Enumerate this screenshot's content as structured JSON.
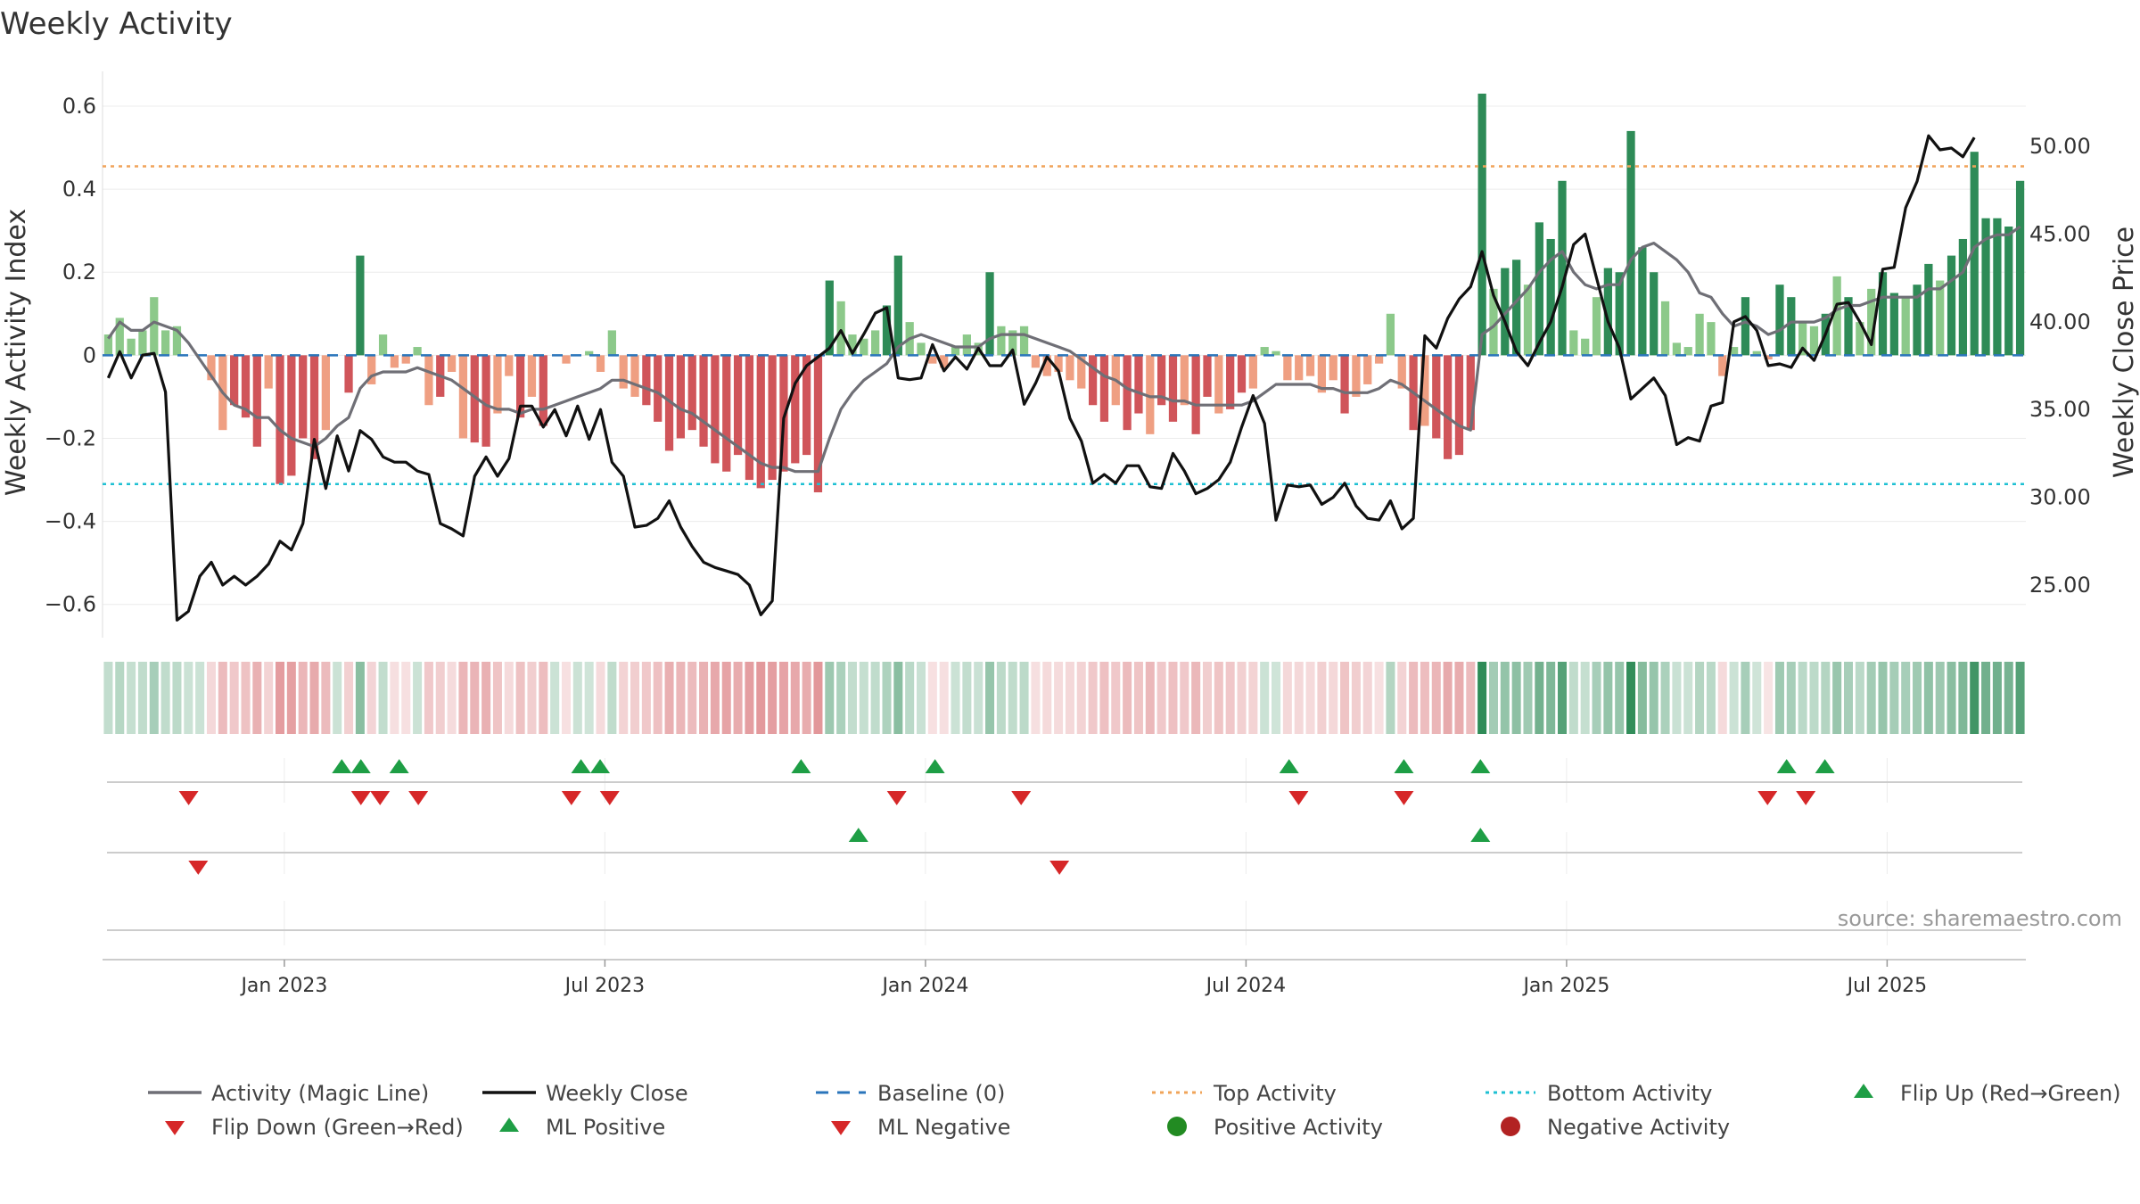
{
  "chart_data": {
    "type": "bar",
    "title": "Weekly Activity",
    "ylabel": "Weekly Activity Index",
    "y2label": "Weekly Close Price",
    "ylim": [
      -0.68,
      0.63
    ],
    "y2lim": [
      22.0,
      53.0
    ],
    "yticks": [
      0.6,
      0.4,
      0.2,
      0,
      -0.2,
      -0.4,
      -0.6
    ],
    "ytick_labels": [
      "0.6",
      "0.4",
      "0.2",
      "0",
      "−0.2",
      "−0.4",
      "−0.6"
    ],
    "y2ticks": [
      50,
      45,
      40,
      35,
      30,
      25
    ],
    "y2tick_labels": [
      "50.00",
      "45.00",
      "40.00",
      "35.00",
      "30.00",
      "25.00"
    ],
    "week_range": [
      0,
      201
    ],
    "xtick_weeks": [
      19,
      52.5,
      86,
      119.5,
      153,
      186.5
    ],
    "xtick_labels": [
      "Jan 2023",
      "Jul 2023",
      "Jan 2024",
      "Jul 2024",
      "Jan 2025",
      "Jul 2025"
    ],
    "top_activity": 0.455,
    "bottom_activity": -0.31,
    "activity_bars": [
      0.05,
      0.09,
      0.04,
      0.06,
      0.14,
      0.06,
      0.07,
      0,
      0,
      -0.06,
      -0.18,
      -0.12,
      -0.15,
      -0.22,
      -0.08,
      -0.31,
      -0.29,
      -0.2,
      -0.25,
      -0.18,
      0,
      -0.09,
      0.24,
      -0.07,
      0.05,
      -0.03,
      -0.02,
      0.02,
      -0.12,
      -0.1,
      -0.04,
      -0.2,
      -0.21,
      -0.22,
      -0.14,
      -0.05,
      -0.15,
      -0.1,
      -0.17,
      0,
      -0.02,
      0,
      0.01,
      -0.04,
      0.06,
      -0.08,
      -0.1,
      -0.12,
      -0.16,
      -0.23,
      -0.2,
      -0.18,
      -0.22,
      -0.26,
      -0.28,
      -0.24,
      -0.3,
      -0.32,
      -0.3,
      -0.28,
      -0.26,
      -0.24,
      -0.33,
      0.18,
      0.13,
      0.05,
      0.04,
      0.06,
      0.12,
      0.24,
      0.08,
      0.03,
      -0.02,
      -0.03,
      0.02,
      0.05,
      0.03,
      0.2,
      0.07,
      0.06,
      0.07,
      -0.03,
      -0.05,
      -0.04,
      -0.06,
      -0.08,
      -0.12,
      -0.16,
      -0.12,
      -0.18,
      -0.14,
      -0.19,
      -0.12,
      -0.16,
      -0.12,
      -0.19,
      -0.1,
      -0.14,
      -0.13,
      -0.09,
      -0.08,
      0.02,
      0.01,
      -0.06,
      -0.06,
      -0.05,
      -0.09,
      -0.06,
      -0.14,
      -0.1,
      -0.07,
      -0.02,
      0.1,
      -0.08,
      -0.18,
      -0.17,
      -0.2,
      -0.25,
      -0.24,
      -0.18,
      0.63,
      0.16,
      0.21,
      0.23,
      0.17,
      0.32,
      0.28,
      0.42,
      0.06,
      0.04,
      0.14,
      0.21,
      0.2,
      0.54,
      0.26,
      0.2,
      0.13,
      0.03,
      0.02,
      0.1,
      0.08,
      -0.05,
      0.02,
      0.14,
      0.01,
      -0.01,
      0.17,
      0.14,
      0.08,
      0.07,
      0.1,
      0.19,
      0.14,
      0.08,
      0.16,
      0.2,
      0.15,
      0.14,
      0.17,
      0.22,
      0.18,
      0.24,
      0.28,
      0.49,
      0.33,
      0.33,
      0.31,
      0.42
    ],
    "magic_line": [
      0.04,
      0.08,
      0.06,
      0.06,
      0.08,
      0.07,
      0.06,
      0.03,
      -0.01,
      -0.05,
      -0.09,
      -0.12,
      -0.13,
      -0.15,
      -0.15,
      -0.18,
      -0.2,
      -0.21,
      -0.22,
      -0.2,
      -0.17,
      -0.15,
      -0.08,
      -0.05,
      -0.04,
      -0.04,
      -0.04,
      -0.03,
      -0.04,
      -0.05,
      -0.06,
      -0.08,
      -0.1,
      -0.12,
      -0.13,
      -0.13,
      -0.14,
      -0.13,
      -0.13,
      -0.12,
      -0.11,
      -0.1,
      -0.09,
      -0.08,
      -0.06,
      -0.06,
      -0.07,
      -0.08,
      -0.09,
      -0.11,
      -0.13,
      -0.14,
      -0.16,
      -0.18,
      -0.2,
      -0.22,
      -0.24,
      -0.26,
      -0.27,
      -0.27,
      -0.28,
      -0.28,
      -0.28,
      -0.2,
      -0.13,
      -0.09,
      -0.06,
      -0.04,
      -0.02,
      0.02,
      0.04,
      0.05,
      0.04,
      0.03,
      0.02,
      0.02,
      0.02,
      0.04,
      0.05,
      0.05,
      0.05,
      0.04,
      0.03,
      0.02,
      0.01,
      -0.01,
      -0.03,
      -0.05,
      -0.06,
      -0.08,
      -0.09,
      -0.1,
      -0.1,
      -0.11,
      -0.11,
      -0.12,
      -0.12,
      -0.12,
      -0.12,
      -0.12,
      -0.11,
      -0.09,
      -0.07,
      -0.07,
      -0.07,
      -0.07,
      -0.08,
      -0.08,
      -0.09,
      -0.09,
      -0.09,
      -0.08,
      -0.06,
      -0.07,
      -0.09,
      -0.11,
      -0.13,
      -0.15,
      -0.17,
      -0.18,
      0.05,
      0.07,
      0.1,
      0.13,
      0.16,
      0.2,
      0.23,
      0.25,
      0.2,
      0.17,
      0.16,
      0.17,
      0.17,
      0.23,
      0.26,
      0.27,
      0.25,
      0.23,
      0.2,
      0.15,
      0.14,
      0.1,
      0.07,
      0.08,
      0.07,
      0.05,
      0.06,
      0.08,
      0.08,
      0.08,
      0.09,
      0.11,
      0.12,
      0.12,
      0.13,
      0.14,
      0.14,
      0.14,
      0.14,
      0.16,
      0.16,
      0.18,
      0.2,
      0.26,
      0.28,
      0.29,
      0.29,
      0.31
    ],
    "weekly_close": [
      36.8,
      38.3,
      36.8,
      38.1,
      38.2,
      36,
      23,
      23.5,
      25.5,
      26.3,
      25,
      25.5,
      25,
      25.5,
      26.2,
      27.5,
      27,
      28.5,
      33.3,
      30.5,
      33.5,
      31.5,
      33.8,
      33.3,
      32.3,
      32,
      32,
      31.5,
      31.3,
      28.5,
      28.2,
      27.8,
      31.2,
      32.3,
      31.2,
      32.2,
      35.2,
      35.2,
      34,
      35,
      33.5,
      35.2,
      33.3,
      35,
      32,
      31.2,
      28.3,
      28.4,
      28.8,
      29.8,
      28.3,
      27.2,
      26.3,
      26,
      25.8,
      25.6,
      25,
      23.3,
      24.1,
      34.5,
      36.5,
      37.5,
      38,
      38.5,
      39.5,
      38.2,
      39.3,
      40.5,
      40.8,
      36.8,
      36.7,
      36.8,
      38.7,
      37.2,
      38,
      37.3,
      38.5,
      37.5,
      37.5,
      38.4,
      35.3,
      36.5,
      38,
      37.2,
      34.5,
      33.2,
      30.8,
      31.3,
      30.8,
      31.8,
      31.8,
      30.6,
      30.5,
      32.5,
      31.5,
      30.2,
      30.5,
      31,
      32,
      34,
      35.8,
      34.2,
      28.7,
      30.7,
      30.6,
      30.7,
      29.6,
      30,
      30.8,
      29.5,
      28.8,
      28.7,
      29.8,
      28.2,
      28.8,
      39.2,
      38.5,
      40.2,
      41.3,
      42,
      44,
      41.5,
      40,
      38.3,
      37.5,
      38.8,
      40,
      42,
      44.4,
      45,
      42.5,
      40,
      38.5,
      35.6,
      36.2,
      36.8,
      35.8,
      33,
      33.4,
      33.2,
      35.2,
      35.4,
      40,
      40.3,
      39.5,
      37.5,
      37.6,
      37.4,
      38.5,
      37.8,
      39.3,
      41,
      41.1,
      40,
      38.7,
      43,
      43.1,
      46.5,
      48,
      50.6,
      49.8,
      49.9,
      49.4,
      50.5
    ],
    "heatmap_activity": [
      0.05,
      0.09,
      0.04,
      0.06,
      0.14,
      0.06,
      0.07,
      0,
      0,
      -0.06,
      -0.18,
      -0.12,
      -0.15,
      -0.22,
      -0.08,
      -0.31,
      -0.29,
      -0.2,
      -0.25,
      -0.18,
      0,
      -0.09,
      0.24,
      -0.07,
      0.05,
      -0.03,
      -0.02,
      0.02,
      -0.12,
      -0.1,
      -0.04,
      -0.2,
      -0.21,
      -0.22,
      -0.14,
      -0.05,
      -0.15,
      -0.1,
      -0.17,
      0,
      -0.02,
      0,
      0.01,
      -0.04,
      0.06,
      -0.08,
      -0.1,
      -0.12,
      -0.16,
      -0.23,
      -0.2,
      -0.18,
      -0.22,
      -0.26,
      -0.28,
      -0.24,
      -0.3,
      -0.32,
      -0.3,
      -0.28,
      -0.26,
      -0.24,
      -0.33,
      0.18,
      0.13,
      0.05,
      0.04,
      0.06,
      0.12,
      0.24,
      0.08,
      0.03,
      -0.02,
      -0.03,
      0.02,
      0.05,
      0.03,
      0.2,
      0.07,
      0.06,
      0.07,
      -0.03,
      -0.05,
      -0.04,
      -0.06,
      -0.08,
      -0.12,
      -0.16,
      -0.12,
      -0.18,
      -0.14,
      -0.19,
      -0.12,
      -0.16,
      -0.12,
      -0.19,
      -0.1,
      -0.14,
      -0.13,
      -0.09,
      -0.08,
      0.02,
      0.01,
      -0.06,
      -0.06,
      -0.05,
      -0.09,
      -0.06,
      -0.14,
      -0.1,
      -0.07,
      -0.02,
      0.1,
      -0.08,
      -0.18,
      -0.17,
      -0.2,
      -0.25,
      -0.24,
      -0.18,
      0.63,
      0.16,
      0.21,
      0.23,
      0.17,
      0.32,
      0.28,
      0.42,
      0.06,
      0.04,
      0.14,
      0.21,
      0.2,
      0.54,
      0.26,
      0.2,
      0.13,
      0.03,
      0.02,
      0.1,
      0.08,
      -0.05,
      0.02,
      0.14,
      0.01,
      -0.01,
      0.17,
      0.14,
      0.08,
      0.07,
      0.1,
      0.19,
      0.14,
      0.08,
      0.16,
      0.2,
      0.15,
      0.14,
      0.17,
      0.22,
      0.18,
      0.24,
      0.28,
      0.49,
      0.33,
      0.33,
      0.31,
      0.42
    ],
    "flip_up_weeks": [
      25,
      27,
      31,
      50,
      52,
      73,
      87,
      124,
      136,
      144,
      176,
      180
    ],
    "flip_down_weeks": [
      9,
      27,
      29,
      33,
      49,
      53,
      83,
      96,
      125,
      136,
      174,
      178
    ],
    "ml_positive_weeks": [
      79,
      144
    ],
    "ml_negative_weeks": [
      10,
      100
    ],
    "source_text": "source: sharemaestro.com",
    "legend": [
      {
        "label": "Activity (Magic Line)",
        "kind": "line",
        "color": "#6f6f76"
      },
      {
        "label": "Weekly Close",
        "kind": "line",
        "color": "#111111"
      },
      {
        "label": "Baseline (0)",
        "kind": "dashed",
        "color": "#2a75bb"
      },
      {
        "label": "Top Activity",
        "kind": "dotted",
        "color": "#f0a45a"
      },
      {
        "label": "Bottom Activity",
        "kind": "dotted",
        "color": "#1fc0d3"
      },
      {
        "label": "Flip Up (Red→Green)",
        "kind": "tri-up",
        "color": "#1e9e45"
      },
      {
        "label": "Flip Down (Green→Red)",
        "kind": "tri-down",
        "color": "#d62728"
      },
      {
        "label": "ML Positive",
        "kind": "tri-up",
        "color": "#1e9e45"
      },
      {
        "label": "ML Negative",
        "kind": "tri-down",
        "color": "#d62728"
      },
      {
        "label": "Positive Activity",
        "kind": "dot",
        "color": "#228b22"
      },
      {
        "label": "Negative Activity",
        "kind": "dot",
        "color": "#b22222"
      }
    ],
    "colors": {
      "strong_green": "#2e8b57",
      "light_green": "#8cc98a",
      "strong_red": "#d0555a",
      "light_red": "#ef9f82",
      "magic_line": "#6f6f76",
      "close_line": "#111111",
      "baseline": "#2a75bb",
      "top": "#f0a45a",
      "bottom": "#1fc0d3",
      "marker_green": "#1e9e45",
      "marker_red": "#d62728"
    }
  }
}
